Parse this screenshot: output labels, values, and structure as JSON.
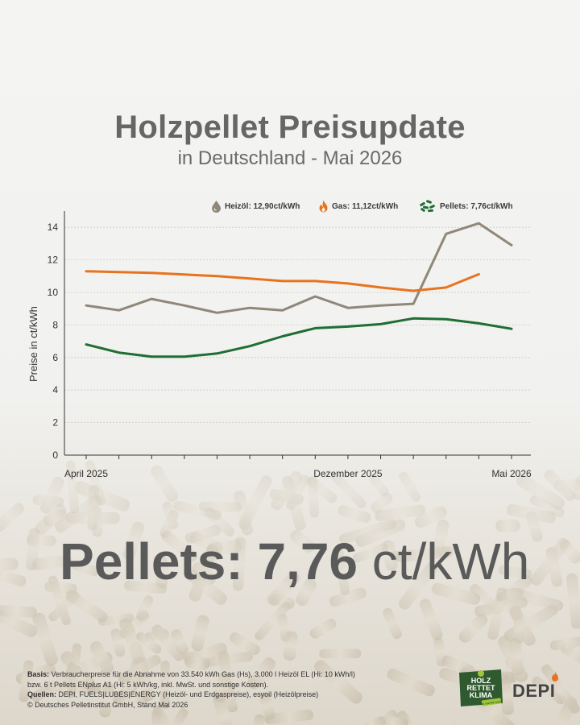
{
  "header": {
    "title": "Holzpellet Preisupdate",
    "subtitle": "in Deutschland - Mai 2026"
  },
  "legend": {
    "heizoel": "Heizöl: 12,90ct/kWh",
    "gas": "Gas: 11,12ct/kWh",
    "pellets": "Pellets: 7,76ct/kWh"
  },
  "colors": {
    "heizoel": "#8f8779",
    "gas": "#e8731f",
    "pellets": "#1f6e34",
    "text": "#666664"
  },
  "chart_data": {
    "type": "line",
    "ylabel": "Preise in ct/kWh",
    "ylim": [
      0,
      15
    ],
    "yticks": [
      0,
      2,
      4,
      6,
      8,
      10,
      12,
      14
    ],
    "x_count": 14,
    "x_tick_labels": [
      {
        "index": 0,
        "label": "April 2025"
      },
      {
        "index": 8,
        "label": "Dezember 2025"
      },
      {
        "index": 13,
        "label": "Mai 2026"
      }
    ],
    "series": [
      {
        "key": "heizoel",
        "values": [
          9.2,
          8.9,
          9.6,
          9.2,
          8.75,
          9.05,
          8.9,
          9.75,
          9.05,
          9.2,
          9.3,
          13.6,
          14.25,
          12.9
        ]
      },
      {
        "key": "gas",
        "values": [
          11.3,
          11.25,
          11.2,
          11.1,
          11.0,
          10.85,
          10.7,
          10.7,
          10.55,
          10.3,
          10.1,
          10.3,
          11.12,
          null
        ]
      },
      {
        "key": "pellets",
        "values": [
          6.8,
          6.3,
          6.05,
          6.05,
          6.25,
          6.7,
          7.3,
          7.8,
          7.9,
          8.05,
          8.4,
          8.35,
          8.1,
          7.76
        ]
      }
    ]
  },
  "headline": {
    "label": "Pellets:",
    "value": "7,76",
    "unit": "ct/kWh"
  },
  "footer": {
    "basis_label": "Basis:",
    "basis_line1": "Verbraucherpreise für die Abnahme von 33.540 kWh Gas (Hs), 3.000 l Heizöl EL (Hi: 10 kWh/l)",
    "basis_line2_a": "bzw. 6 t Pellets EN",
    "basis_line2_plus": "plus",
    "basis_line2_b": " A1 (Hi: 5 kWh/kg, inkl. MwSt. und sonstige Kosten).",
    "quellen_label": "Quellen:",
    "quellen_text": "DEPI, FUELS|LUBES|ENERGY (Heizöl- und Erdgaspreise), esyoil (Heizölpreise)",
    "copyright": "© Deutsches Pelletinstitut GmbH, Stand Mai 2026"
  },
  "logos": {
    "holz_line1": "HOLZ",
    "holz_line2": "RETTET",
    "holz_line3": "KLIMA",
    "holz_tag": "Es wächst nach.",
    "depi": "DEPI"
  }
}
